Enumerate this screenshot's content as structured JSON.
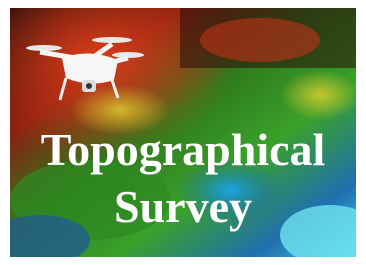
{
  "title_lines": [
    "Topographical",
    "Survey"
  ]
}
